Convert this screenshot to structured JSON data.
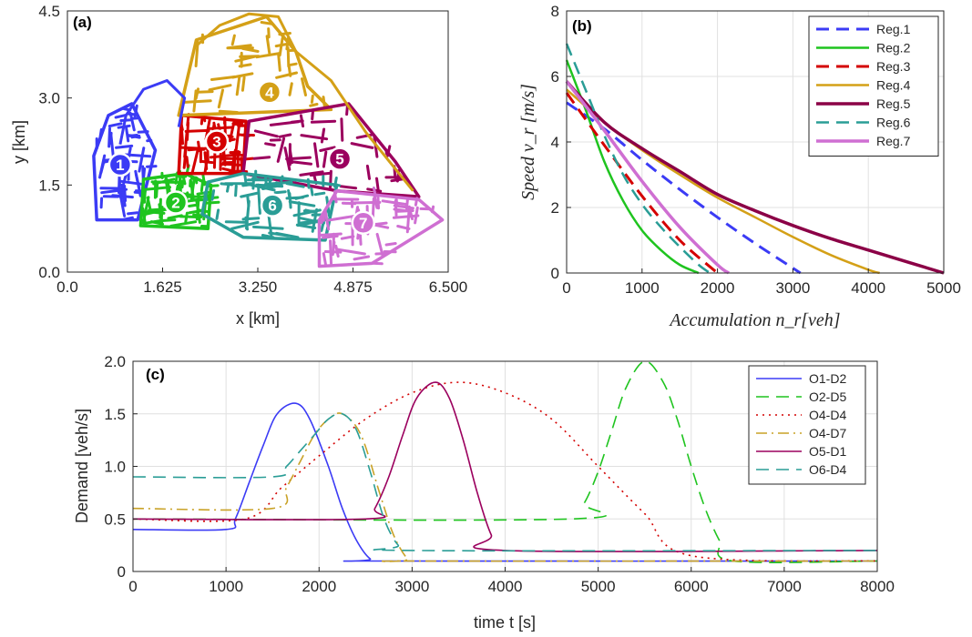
{
  "panel_a": {
    "tag": "(a)",
    "xlabel": "x [km]",
    "ylabel": "y [km]",
    "xticks": [
      "0.0",
      "1.625",
      "3.250",
      "4.875",
      "6.500"
    ],
    "yticks": [
      "0.0",
      "1.5",
      "3.0",
      "4.5"
    ],
    "regions": [
      {
        "label": "1",
        "color": "#3b3bf5"
      },
      {
        "label": "2",
        "color": "#1fc41f"
      },
      {
        "label": "3",
        "color": "#d40000"
      },
      {
        "label": "4",
        "color": "#d4a017"
      },
      {
        "label": "5",
        "color": "#9b005e"
      },
      {
        "label": "6",
        "color": "#2a9d96"
      },
      {
        "label": "7",
        "color": "#cf6fd2"
      }
    ]
  },
  "panel_b": {
    "tag": "(b)",
    "xlabel": "Accumulation n_r[veh]",
    "ylabel": "Speed v_r [m/s]"
  },
  "panel_c": {
    "tag": "(c)",
    "xlabel": "time t [s]",
    "ylabel": "Demand [veh/s]"
  },
  "chart_data": [
    {
      "type": "map",
      "title": "(a)",
      "xlabel": "x [km]",
      "ylabel": "y [km]",
      "xlim": [
        0,
        6.5
      ],
      "ylim": [
        0,
        4.5
      ],
      "xticks": [
        0,
        1.625,
        3.25,
        4.875,
        6.5
      ],
      "yticks": [
        0,
        1.5,
        3.0,
        4.5
      ],
      "regions": [
        {
          "name": "1",
          "color": "#3b3bf5",
          "center": [
            0.9,
            1.85
          ]
        },
        {
          "name": "2",
          "color": "#1fc41f",
          "center": [
            1.85,
            1.2
          ]
        },
        {
          "name": "3",
          "color": "#d40000",
          "center": [
            2.55,
            2.25
          ]
        },
        {
          "name": "4",
          "color": "#d4a017",
          "center": [
            3.45,
            3.1
          ]
        },
        {
          "name": "5",
          "color": "#9b005e",
          "center": [
            4.65,
            1.95
          ]
        },
        {
          "name": "6",
          "color": "#2a9d96",
          "center": [
            3.5,
            1.15
          ]
        },
        {
          "name": "7",
          "color": "#cf6fd2",
          "center": [
            5.05,
            0.85
          ]
        }
      ]
    },
    {
      "type": "line",
      "title": "(b)",
      "xlabel": "Accumulation n_r[veh]",
      "ylabel": "Speed v_r [m/s]",
      "xlim": [
        0,
        5000
      ],
      "ylim": [
        0,
        8
      ],
      "xticks": [
        0,
        1000,
        2000,
        3000,
        4000,
        5000
      ],
      "yticks": [
        0,
        2,
        4,
        6,
        8
      ],
      "legend_position": "top-right",
      "series": [
        {
          "name": "Reg.1",
          "color": "#3b3bf5",
          "style": "dashed",
          "width": 3,
          "x": [
            0,
            500,
            1000,
            1500,
            2000,
            2500,
            3000,
            3100
          ],
          "y": [
            5.2,
            4.4,
            3.45,
            2.55,
            1.7,
            0.9,
            0.15,
            0
          ]
        },
        {
          "name": "Reg.2",
          "color": "#1fc41f",
          "style": "solid",
          "width": 2.5,
          "x": [
            0,
            250,
            500,
            750,
            1000,
            1250,
            1500,
            1750
          ],
          "y": [
            6.5,
            5.0,
            3.4,
            2.2,
            1.3,
            0.7,
            0.25,
            0
          ]
        },
        {
          "name": "Reg.3",
          "color": "#d40000",
          "style": "dashed",
          "width": 3,
          "x": [
            0,
            500,
            1000,
            1500,
            2000
          ],
          "y": [
            5.5,
            3.9,
            2.35,
            1.0,
            0
          ]
        },
        {
          "name": "Reg.4",
          "color": "#d4a017",
          "style": "solid",
          "width": 2.5,
          "x": [
            0,
            500,
            1000,
            1500,
            2000,
            2500,
            3000,
            3500,
            4000,
            4150
          ],
          "y": [
            5.6,
            4.6,
            3.75,
            3.0,
            2.3,
            1.7,
            1.1,
            0.55,
            0.1,
            0
          ]
        },
        {
          "name": "Reg.5",
          "color": "#8b0046",
          "style": "solid",
          "width": 3.5,
          "x": [
            0,
            500,
            1000,
            1500,
            2000,
            2500,
            3000,
            3500,
            4000,
            4500,
            5000
          ],
          "y": [
            5.85,
            4.6,
            3.8,
            3.1,
            2.4,
            1.9,
            1.45,
            1.05,
            0.7,
            0.35,
            0
          ]
        },
        {
          "name": "Reg.6",
          "color": "#2a9d96",
          "style": "dashed",
          "width": 2.5,
          "x": [
            0,
            250,
            500,
            750,
            1000,
            1250,
            1500,
            1750,
            1900
          ],
          "y": [
            7.0,
            5.6,
            4.2,
            3.0,
            2.1,
            1.4,
            0.8,
            0.25,
            0
          ]
        },
        {
          "name": "Reg.7",
          "color": "#cf6fd2",
          "style": "solid",
          "width": 3.5,
          "x": [
            0,
            500,
            1000,
            1500,
            2000,
            2150
          ],
          "y": [
            5.85,
            4.35,
            2.8,
            1.4,
            0.25,
            0
          ]
        }
      ]
    },
    {
      "type": "line",
      "title": "(c)",
      "xlabel": "time t [s]",
      "ylabel": "Demand [veh/s]",
      "xlim": [
        0,
        8000
      ],
      "ylim": [
        0,
        2
      ],
      "xticks": [
        0,
        1000,
        2000,
        3000,
        4000,
        5000,
        6000,
        7000,
        8000
      ],
      "yticks": [
        0,
        0.5,
        1.0,
        1.5,
        2.0
      ],
      "legend_position": "top-right",
      "series": [
        {
          "name": "O1-D2",
          "color": "#3b3bf5",
          "style": "solid",
          "x": [
            0,
            1000,
            1100,
            1250,
            1400,
            1550,
            1750,
            1900,
            2100,
            2250,
            2400,
            2550,
            2700,
            8000
          ],
          "y": [
            0.4,
            0.4,
            0.5,
            0.85,
            1.2,
            1.5,
            1.6,
            1.45,
            1.0,
            0.6,
            0.3,
            0.12,
            0.1,
            0.1
          ]
        },
        {
          "name": "O2-D5",
          "color": "#1fc41f",
          "style": "dashed",
          "x": [
            0,
            4700,
            4850,
            5000,
            5150,
            5300,
            5500,
            5700,
            5850,
            6000,
            6150,
            6300,
            6450,
            8000
          ],
          "y": [
            0.5,
            0.5,
            0.65,
            0.95,
            1.35,
            1.75,
            2.0,
            1.8,
            1.45,
            1.0,
            0.6,
            0.3,
            0.1,
            0.1
          ]
        },
        {
          "name": "O4-D4",
          "color": "#d40000",
          "style": "dotted",
          "x": [
            0,
            1200,
            1600,
            2000,
            2500,
            3000,
            3500,
            4000,
            4500,
            5000,
            5500,
            6000,
            8000
          ],
          "y": [
            0.5,
            0.5,
            0.8,
            1.1,
            1.45,
            1.7,
            1.8,
            1.7,
            1.45,
            1.0,
            0.55,
            0.15,
            0.1
          ]
        },
        {
          "name": "O4-D7",
          "color": "#c9a227",
          "style": "dashdot",
          "x": [
            0,
            1500,
            1650,
            1800,
            1950,
            2100,
            2250,
            2450,
            2650,
            2800,
            2950,
            3050,
            8000
          ],
          "y": [
            0.6,
            0.6,
            0.8,
            1.05,
            1.3,
            1.45,
            1.5,
            1.3,
            0.75,
            0.35,
            0.12,
            0.1,
            0.1
          ]
        },
        {
          "name": "O5-D1",
          "color": "#9b005e",
          "style": "solid",
          "x": [
            0,
            2500,
            2600,
            2750,
            2900,
            3050,
            3250,
            3400,
            3550,
            3700,
            3850,
            4000,
            8000
          ],
          "y": [
            0.5,
            0.5,
            0.6,
            0.9,
            1.3,
            1.65,
            1.8,
            1.65,
            1.25,
            0.75,
            0.35,
            0.2,
            0.2
          ]
        },
        {
          "name": "O6-D4",
          "color": "#2a9d96",
          "style": "dashed",
          "x": [
            0,
            1500,
            1650,
            1800,
            1950,
            2100,
            2250,
            2400,
            2550,
            2700,
            2850,
            3000,
            8000
          ],
          "y": [
            0.9,
            0.9,
            1.0,
            1.15,
            1.3,
            1.45,
            1.5,
            1.35,
            0.95,
            0.5,
            0.25,
            0.2,
            0.2
          ]
        }
      ]
    }
  ]
}
